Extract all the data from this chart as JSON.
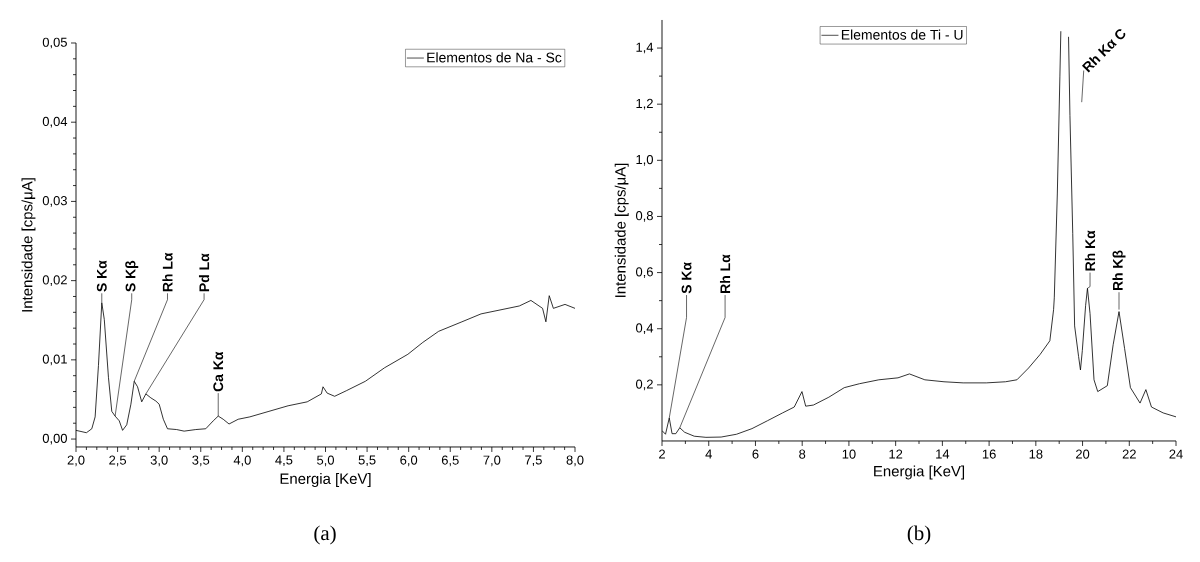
{
  "chart_data": [
    {
      "type": "line",
      "xlabel": "Energia [KeV]",
      "ylabel": "Intensidade [cps/μA]",
      "legend": "top right",
      "marker": "none",
      "line_style": "solid",
      "xlim": [
        2.0,
        8.0
      ],
      "ylim": [
        -0.001,
        0.05
      ],
      "xticks": [
        {
          "value": 2.0,
          "label": "2,0"
        },
        {
          "value": 2.5,
          "label": "2,5"
        },
        {
          "value": 3.0,
          "label": "3,0"
        },
        {
          "value": 3.5,
          "label": "3,5"
        },
        {
          "value": 4.0,
          "label": "4,0"
        },
        {
          "value": 4.5,
          "label": "4,5"
        },
        {
          "value": 5.0,
          "label": "5,0"
        },
        {
          "value": 5.5,
          "label": "5,5"
        },
        {
          "value": 6.0,
          "label": "6,0"
        },
        {
          "value": 6.5,
          "label": "6,5"
        },
        {
          "value": 7.0,
          "label": "7,0"
        },
        {
          "value": 7.5,
          "label": "7,5"
        },
        {
          "value": 8.0,
          "label": "8,0"
        }
      ],
      "yticks": [
        {
          "value": 0.0,
          "label": "0,00"
        },
        {
          "value": 0.01,
          "label": "0,01"
        },
        {
          "value": 0.02,
          "label": "0,02"
        },
        {
          "value": 0.03,
          "label": "0,03"
        },
        {
          "value": 0.04,
          "label": "0,04"
        },
        {
          "value": 0.05,
          "label": "0,05"
        }
      ],
      "series": [
        {
          "name": "Elementos de Na - Sc",
          "color": "#000000",
          "x": [
            2.0,
            2.125,
            2.19,
            2.23,
            2.27,
            2.31,
            2.34,
            2.39,
            2.43,
            2.47,
            2.52,
            2.56,
            2.61,
            2.66,
            2.7,
            2.74,
            2.79,
            2.84,
            2.9,
            2.96,
            3.0,
            3.05,
            3.1,
            3.21,
            3.3,
            3.44,
            3.56,
            3.65,
            3.71,
            3.77,
            3.84,
            3.95,
            4.09,
            4.32,
            4.55,
            4.78,
            4.95,
            4.97,
            5.02,
            5.11,
            5.25,
            5.48,
            5.71,
            5.99,
            6.17,
            6.36,
            6.64,
            6.87,
            7.1,
            7.33,
            7.47,
            7.61,
            7.65,
            7.69,
            7.74,
            7.88,
            8.0
          ],
          "values": [
            0.0011,
            0.0008,
            0.0013,
            0.0028,
            0.0093,
            0.0172,
            0.0151,
            0.0078,
            0.0035,
            0.0029,
            0.0023,
            0.0011,
            0.0018,
            0.0044,
            0.0073,
            0.0066,
            0.0047,
            0.0057,
            0.0052,
            0.0048,
            0.0044,
            0.0025,
            0.0013,
            0.0012,
            0.001,
            0.0012,
            0.0013,
            0.0023,
            0.0029,
            0.0025,
            0.0019,
            0.0025,
            0.0028,
            0.0035,
            0.0042,
            0.0047,
            0.0057,
            0.0066,
            0.0058,
            0.0054,
            0.0061,
            0.0073,
            0.009,
            0.0107,
            0.0122,
            0.0136,
            0.0148,
            0.0158,
            0.0163,
            0.0168,
            0.0175,
            0.0165,
            0.0148,
            0.0181,
            0.0165,
            0.017,
            0.0165
          ]
        }
      ],
      "annotations": [
        "(a)",
        {
          "text": "S Kα",
          "x": 2.31,
          "y": 0.0172
        },
        {
          "text": "S Kβ",
          "x": 2.47,
          "y": 0.0029
        },
        {
          "text": "Rh Lα",
          "x": 2.7,
          "y": 0.0073
        },
        {
          "text": "Pd Lα",
          "x": 2.84,
          "y": 0.0057
        },
        {
          "text": "Ca Kα",
          "x": 3.71,
          "y": 0.0029
        }
      ]
    },
    {
      "type": "line",
      "xlabel": "Energia [KeV]",
      "ylabel": "Intensidade [cps/μA]",
      "legend": "top",
      "marker": "none",
      "line_style": "solid",
      "xlim": [
        2,
        24
      ],
      "ylim": [
        0,
        1.5
      ],
      "xticks": [
        2,
        4,
        6,
        8,
        10,
        12,
        14,
        16,
        18,
        20,
        22,
        24
      ],
      "yticks": [
        {
          "value": 0.2,
          "label": "0,2"
        },
        {
          "value": 0.4,
          "label": "0,4"
        },
        {
          "value": 0.6,
          "label": "0,6"
        },
        {
          "value": 0.8,
          "label": "0,8"
        },
        {
          "value": 1.0,
          "label": "1,0"
        },
        {
          "value": 1.2,
          "label": "1,2"
        },
        {
          "value": 1.4,
          "label": "1,4"
        }
      ],
      "series": [
        {
          "name": "Elementos de Ti - U",
          "color": "#000000",
          "x": [
            2.0,
            2.15,
            2.31,
            2.43,
            2.59,
            2.76,
            2.97,
            3.38,
            3.88,
            4.53,
            5.19,
            5.85,
            6.51,
            7.16,
            7.66,
            7.99,
            8.15,
            8.48,
            9.14,
            9.8,
            10.45,
            11.28,
            12.1,
            12.59,
            13.25,
            14.07,
            14.89,
            15.88,
            16.7,
            17.19,
            17.69,
            18.18,
            18.6,
            18.76,
            18.79,
            18.92,
            19.03,
            19.07,
            19.13,
            19.33,
            19.4,
            19.46,
            19.58,
            19.66,
            19.83,
            19.91,
            19.99,
            20.13,
            20.21,
            20.32,
            20.49,
            20.65,
            21.06,
            21.31,
            21.56,
            21.8,
            22.05,
            22.46,
            22.71,
            22.95,
            23.45,
            24.0
          ],
          "values": [
            0.037,
            0.024,
            0.082,
            0.026,
            0.026,
            0.047,
            0.031,
            0.017,
            0.013,
            0.014,
            0.024,
            0.044,
            0.072,
            0.1,
            0.121,
            0.176,
            0.124,
            0.128,
            0.156,
            0.19,
            0.204,
            0.218,
            0.225,
            0.239,
            0.218,
            0.211,
            0.207,
            0.207,
            0.211,
            0.218,
            0.26,
            0.308,
            0.357,
            0.468,
            0.51,
            0.88,
            1.3,
            1.46,
            null,
            null,
            1.44,
            1.16,
            0.74,
            0.41,
            0.301,
            0.253,
            0.322,
            0.482,
            0.544,
            0.454,
            0.218,
            0.176,
            0.197,
            0.343,
            0.461,
            0.329,
            0.19,
            0.135,
            0.183,
            0.121,
            0.1,
            0.086
          ]
        }
      ],
      "annotations": [
        "(b)",
        {
          "text": "S Kα",
          "x": 2.31,
          "y": 0.082
        },
        {
          "text": "Rh Lα",
          "x": 2.76,
          "y": 0.047
        },
        {
          "text": "Rh Kα C",
          "x": 19.45,
          "y": 1.2
        },
        {
          "text": "Rh Kα",
          "x": 20.21,
          "y": 0.544
        },
        {
          "text": "Rh Kβ",
          "x": 21.56,
          "y": 0.461
        }
      ]
    }
  ]
}
